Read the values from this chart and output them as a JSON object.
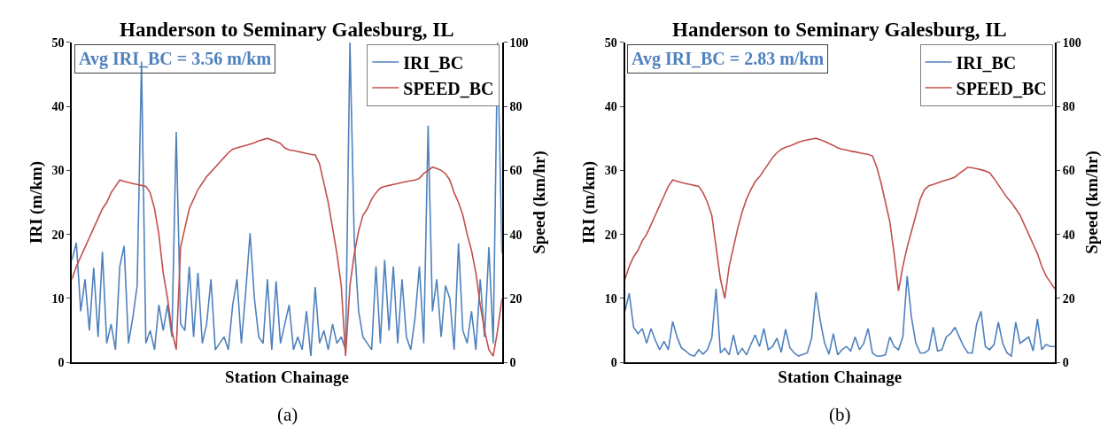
{
  "chart_data": [
    {
      "type": "line",
      "title": "Handerson to Seminary Galesburg, IL",
      "xlabel": "Station Chainage",
      "ylabel": "IRI (m/km)",
      "y2label": "Speed (km/hr)",
      "categories": [
        null,
        null,
        null,
        null,
        null,
        null,
        null,
        null,
        null,
        null,
        null,
        null,
        null,
        null,
        null,
        null,
        null,
        null,
        null,
        null,
        null,
        null,
        null,
        null,
        null,
        null,
        null,
        null,
        null,
        null,
        null,
        null,
        null,
        null,
        null,
        null,
        null,
        null,
        null,
        null,
        null,
        null,
        null,
        null,
        null,
        null,
        null,
        null,
        null,
        null,
        null,
        null,
        null,
        null,
        null,
        null,
        null,
        null,
        null,
        null,
        null,
        null,
        null,
        null,
        null,
        null,
        null,
        null,
        null,
        null,
        null,
        null,
        null,
        null,
        null,
        null,
        null,
        null,
        null,
        null,
        null,
        null,
        null,
        null,
        null,
        null,
        null,
        null,
        null,
        null,
        null,
        null,
        null,
        null,
        null,
        null,
        null,
        null,
        null,
        null
      ],
      "series": [
        {
          "name": "IRI_BC",
          "color": "#4f81bd",
          "values": [
            16,
            18.7,
            8,
            13,
            5,
            14.8,
            4,
            17.3,
            3,
            6,
            2,
            15,
            18.2,
            3,
            7,
            12,
            47,
            3,
            5,
            2,
            9,
            5,
            9,
            4,
            36,
            6,
            5,
            15,
            4,
            14,
            3,
            6,
            13,
            2,
            3,
            4,
            2,
            9,
            13,
            3,
            11,
            20.2,
            10,
            4,
            3,
            13,
            2,
            12.7,
            3,
            6,
            9,
            2,
            4,
            2,
            8,
            1,
            11.8,
            3,
            5,
            2,
            6,
            3,
            4,
            2,
            50,
            19,
            8,
            4,
            3,
            2,
            15,
            3,
            16,
            5,
            15,
            3,
            13,
            4,
            2,
            7,
            15,
            3,
            37,
            8,
            13,
            4,
            12,
            10,
            2,
            18.6,
            5,
            3,
            8,
            2,
            13,
            4,
            18,
            3,
            50,
            17
          ]
        },
        {
          "name": "SPEED_BC",
          "color": "#c0504d",
          "axis": "y2",
          "values": [
            26,
            30,
            33,
            36,
            39,
            42,
            45,
            48,
            50,
            53,
            55,
            57,
            56.6,
            56.2,
            55.9,
            55.6,
            55.3,
            55,
            53,
            48,
            40,
            28,
            20,
            10,
            4,
            36,
            42,
            48,
            51,
            54,
            56,
            58,
            59.5,
            61,
            62.5,
            64,
            65.5,
            66.6,
            67,
            67.4,
            67.8,
            68.2,
            68.6,
            69.2,
            69.6,
            70,
            69.5,
            69,
            68.4,
            67,
            66.4,
            66.2,
            65.9,
            65.6,
            65.3,
            65,
            64.8,
            62,
            56,
            50,
            42,
            34,
            24,
            2,
            24,
            34,
            41,
            46,
            48,
            51,
            53,
            54.5,
            55,
            55.3,
            55.6,
            55.9,
            56.2,
            56.5,
            56.8,
            57,
            57.5,
            59,
            60,
            61,
            60.6,
            60,
            59,
            57,
            53,
            50,
            46,
            40,
            35,
            28,
            18,
            10,
            4,
            2,
            10,
            20
          ]
        }
      ],
      "ylim": [
        0,
        50
      ],
      "yticks": [
        0,
        10,
        20,
        30,
        40,
        50
      ],
      "y2lim": [
        0,
        100
      ],
      "y2ticks": [
        0,
        20,
        40,
        60,
        80,
        100
      ],
      "tick_labels": "y",
      "legend": "top right",
      "annotations": [
        "Avg IRI_BC = 3.56 m/km",
        "(a)"
      ]
    },
    {
      "type": "line",
      "title": "Handerson to Seminary Galesburg, IL",
      "xlabel": "Station Chainage",
      "ylabel": "IRI (m/km)",
      "y2label": "Speed (km/hr)",
      "categories": [
        null,
        null,
        null,
        null,
        null,
        null,
        null,
        null,
        null,
        null,
        null,
        null,
        null,
        null,
        null,
        null,
        null,
        null,
        null,
        null,
        null,
        null,
        null,
        null,
        null,
        null,
        null,
        null,
        null,
        null,
        null,
        null,
        null,
        null,
        null,
        null,
        null,
        null,
        null,
        null,
        null,
        null,
        null,
        null,
        null,
        null,
        null,
        null,
        null,
        null,
        null,
        null,
        null,
        null,
        null,
        null,
        null,
        null,
        null,
        null,
        null,
        null,
        null,
        null,
        null,
        null,
        null,
        null,
        null,
        null,
        null,
        null,
        null,
        null,
        null,
        null,
        null,
        null,
        null,
        null,
        null,
        null,
        null,
        null,
        null,
        null,
        null,
        null,
        null,
        null,
        null,
        null,
        null,
        null,
        null,
        null,
        null,
        null,
        null,
        null
      ],
      "series": [
        {
          "name": "IRI_BC",
          "color": "#4f81bd",
          "values": [
            8,
            10.8,
            5.5,
            4.5,
            5.3,
            3,
            5.3,
            3.5,
            2,
            3.3,
            2,
            6.4,
            4,
            2.3,
            1.8,
            1.2,
            1,
            2,
            1.3,
            2,
            3.8,
            11.5,
            1.5,
            2.2,
            1.2,
            4.3,
            1.2,
            2.2,
            1.2,
            2.8,
            4.3,
            2.5,
            5.3,
            2,
            2.5,
            3.8,
            1.6,
            5.2,
            2.3,
            1.5,
            1,
            1.3,
            1.5,
            3.8,
            11,
            6.5,
            3,
            1.3,
            4.5,
            1.2,
            2,
            2.5,
            1.8,
            4,
            2,
            3,
            5.3,
            1.5,
            1,
            1,
            1.2,
            4,
            2.5,
            2,
            4,
            13.5,
            7,
            3,
            1.5,
            1.5,
            2,
            5.5,
            1.8,
            2,
            4,
            4.5,
            5.5,
            4,
            2.5,
            1.5,
            1.5,
            6,
            8,
            2.5,
            2,
            2.8,
            6.3,
            3,
            1.5,
            1,
            6.3,
            3,
            3.5,
            4,
            1.8,
            6.8,
            2,
            2.8,
            2.5,
            2.5
          ]
        },
        {
          "name": "SPEED_BC",
          "color": "#c0504d",
          "axis": "y2",
          "values": [
            26,
            30,
            33,
            35,
            38,
            40,
            43,
            46,
            49,
            52,
            55,
            57,
            56.6,
            56.2,
            55.9,
            55.6,
            55.3,
            55,
            53,
            50,
            46,
            36,
            26,
            20,
            30,
            36,
            42,
            47,
            51,
            54,
            56.5,
            58,
            60,
            62,
            64,
            65.5,
            66.6,
            67.2,
            67.6,
            68.2,
            68.8,
            69.2,
            69.5,
            69.8,
            70,
            69.6,
            69,
            68.4,
            67.8,
            67,
            66.6,
            66.4,
            66,
            65.8,
            65.5,
            65.2,
            65,
            64.5,
            61,
            56,
            50,
            44,
            34,
            22.4,
            30,
            36,
            41,
            46,
            51,
            54,
            55.2,
            55.6,
            56.1,
            56.6,
            57,
            57.4,
            57.9,
            59,
            60,
            61,
            60.8,
            60.5,
            60.2,
            59.8,
            59.2,
            57.5,
            55.5,
            53.5,
            51.5,
            50,
            48,
            46,
            43,
            40,
            37,
            34,
            30,
            27,
            25,
            23
          ]
        }
      ],
      "ylim": [
        0,
        50
      ],
      "yticks": [
        0,
        10,
        20,
        30,
        40,
        50
      ],
      "y2lim": [
        0,
        100
      ],
      "y2ticks": [
        0,
        20,
        40,
        60,
        80,
        100
      ],
      "tick_labels": "y",
      "legend": "top right",
      "annotations": [
        "Avg IRI_BC = 2.83 m/km",
        "(b)"
      ]
    }
  ]
}
